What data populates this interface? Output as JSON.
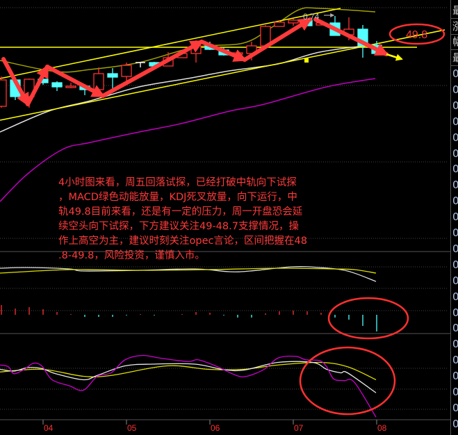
{
  "chart_data": [
    {
      "type": "candlestick",
      "panel": "main",
      "x_tick_labels": [
        "04",
        "05",
        "06",
        "07",
        "08"
      ],
      "x_tick_index": [
        3,
        9,
        15,
        21,
        27
      ],
      "candles_ohlc_note_order": [
        "open",
        "close",
        "high",
        "low"
      ],
      "candles": [
        [
          48.08,
          48.84,
          48.94,
          48.04
        ],
        [
          48.84,
          48.36,
          48.86,
          48.26
        ],
        [
          48.36,
          48.86,
          48.88,
          48.04
        ],
        [
          48.86,
          48.76,
          48.9,
          48.7
        ],
        [
          48.76,
          48.64,
          48.8,
          48.52
        ],
        [
          48.62,
          48.66,
          48.76,
          48.6
        ],
        [
          48.66,
          48.56,
          48.66,
          48.4
        ],
        [
          48.56,
          49.02,
          49.2,
          48.54
        ],
        [
          49.02,
          48.92,
          49.18,
          48.58
        ],
        [
          48.94,
          49.26,
          49.34,
          48.74
        ],
        [
          49.34,
          49.34,
          49.34,
          49.2
        ],
        [
          49.34,
          49.24,
          49.36,
          49.24
        ],
        [
          49.24,
          49.48,
          49.64,
          49.24
        ],
        [
          49.48,
          49.6,
          49.68,
          49.48
        ],
        [
          49.6,
          49.82,
          49.98,
          49.34
        ],
        [
          49.82,
          49.72,
          49.94,
          49.7
        ],
        [
          49.7,
          49.56,
          49.78,
          49.54
        ],
        [
          49.58,
          49.62,
          49.62,
          49.58
        ],
        [
          49.6,
          49.82,
          49.94,
          49.4
        ],
        [
          49.82,
          50.38,
          50.42,
          49.74
        ],
        [
          50.38,
          50.5,
          50.54,
          50.38
        ],
        [
          50.48,
          50.56,
          50.6,
          50.4
        ],
        [
          50.56,
          50.4,
          50.58,
          50.4
        ],
        [
          50.42,
          50.48,
          50.48,
          50.42
        ],
        [
          50.48,
          50.12,
          50.68,
          50.12
        ],
        [
          50.14,
          50.3,
          50.64,
          49.98
        ],
        [
          50.3,
          49.82,
          50.42,
          49.48
        ],
        [
          49.84,
          49.6,
          49.96,
          49.6
        ]
      ],
      "boll_upper": [
        [
          -0.1,
          49.4
        ],
        [
          3.9,
          49.08
        ],
        [
          6.4,
          49.14
        ],
        [
          9.9,
          49.34
        ],
        [
          13.9,
          49.78
        ],
        [
          17.4,
          49.9
        ],
        [
          19.4,
          50.34
        ],
        [
          21.4,
          50.86
        ],
        [
          22.9,
          50.9
        ],
        [
          26.9,
          50.8
        ]
      ],
      "boll_mid": [
        [
          -0.1,
          47.34
        ],
        [
          3.4,
          47.94
        ],
        [
          6.4,
          48.24
        ],
        [
          9.9,
          48.64
        ],
        [
          13.4,
          48.88
        ],
        [
          16.4,
          49.1
        ],
        [
          19.9,
          49.3
        ],
        [
          22.9,
          49.64
        ],
        [
          26.9,
          49.86
        ]
      ],
      "boll_lower": [
        [
          -0.1,
          45.34
        ],
        [
          1.9,
          46.14
        ],
        [
          4.4,
          46.84
        ],
        [
          6.4,
          47.04
        ],
        [
          9.9,
          47.34
        ],
        [
          12.9,
          47.58
        ],
        [
          16.4,
          47.94
        ],
        [
          18.9,
          48.14
        ],
        [
          23.4,
          48.64
        ],
        [
          26.9,
          48.88
        ]
      ],
      "trend_upper": [
        [
          -0.1,
          48.88
        ],
        [
          24.4,
          50.9
        ]
      ],
      "trend_lower": [
        [
          -0.1,
          47.68
        ],
        [
          31.9,
          50.28
        ]
      ],
      "horizontal_level": 49.8,
      "marker_label": "0.74",
      "callout_label": "49.8",
      "colors": {
        "up": "#ff3232",
        "down": "#54ffff",
        "boll_upper": "#a0a000",
        "boll_mid": "#e0e0e0",
        "boll_lower": "#c000c0",
        "trend": "#ffff00",
        "annotation": "#ff3030"
      }
    },
    {
      "type": "bar+line",
      "panel": "macd",
      "histogram": [
        0.14,
        0.09,
        0.11,
        0.08,
        0.04,
        0.01,
        -0.03,
        -0.03,
        -0.03,
        -0.01,
        0.01,
        -0.01,
        0,
        0.01,
        0.04,
        0.03,
        -0.01,
        -0.04,
        -0.04,
        0.02,
        0.05,
        0.06,
        0.05,
        0.03,
        -0.04,
        -0.07,
        -0.16,
        -0.24
      ],
      "dif": [
        [
          -0.1,
          0.67
        ],
        [
          1.9,
          0.68
        ],
        [
          4.9,
          0.66
        ],
        [
          5.9,
          0.63
        ],
        [
          9.9,
          0.64
        ],
        [
          13.9,
          0.66
        ],
        [
          16.4,
          0.62
        ],
        [
          17.9,
          0.63
        ],
        [
          20.9,
          0.69
        ],
        [
          22.9,
          0.68
        ],
        [
          24.9,
          0.63
        ],
        [
          26.95,
          0.48
        ]
      ],
      "dea": [
        [
          -0.1,
          0.6
        ],
        [
          4.9,
          0.65
        ],
        [
          9.9,
          0.64
        ],
        [
          14.9,
          0.65
        ],
        [
          19.9,
          0.67
        ],
        [
          23.9,
          0.66
        ],
        [
          25.4,
          0.65
        ],
        [
          26.95,
          0.6
        ]
      ]
    },
    {
      "type": "line",
      "panel": "kdj",
      "j": [
        [
          -0.1,
          63
        ],
        [
          0.5,
          61
        ],
        [
          0.9,
          53
        ],
        [
          1.65,
          58
        ],
        [
          2.3,
          65
        ],
        [
          2.9,
          62
        ],
        [
          3.65,
          46
        ],
        [
          4.9,
          39
        ],
        [
          5.9,
          34
        ],
        [
          6.9,
          50
        ],
        [
          7.9,
          54
        ],
        [
          8.9,
          69
        ],
        [
          10.15,
          74
        ],
        [
          11.4,
          71
        ],
        [
          13.4,
          67
        ],
        [
          14.15,
          69
        ],
        [
          15.4,
          62
        ],
        [
          16.9,
          51
        ],
        [
          17.65,
          50
        ],
        [
          18.9,
          58
        ],
        [
          19.9,
          71
        ],
        [
          21.15,
          73
        ],
        [
          21.9,
          69
        ],
        [
          22.9,
          68
        ],
        [
          23.4,
          61
        ],
        [
          23.9,
          47
        ],
        [
          24.65,
          45
        ],
        [
          25.4,
          43
        ],
        [
          26.95,
          3
        ]
      ],
      "k": [
        [
          -0.1,
          58
        ],
        [
          0.9,
          56
        ],
        [
          1.9,
          60
        ],
        [
          2.9,
          59
        ],
        [
          3.9,
          53
        ],
        [
          5.9,
          46
        ],
        [
          6.9,
          51
        ],
        [
          8.9,
          62
        ],
        [
          10.9,
          64
        ],
        [
          13.9,
          64
        ],
        [
          15.9,
          58
        ],
        [
          17.4,
          57
        ],
        [
          19.9,
          66
        ],
        [
          22.4,
          66
        ],
        [
          23.4,
          58
        ],
        [
          24.4,
          54
        ],
        [
          24.9,
          54
        ],
        [
          26.95,
          31
        ]
      ],
      "d": [
        [
          -0.1,
          55
        ],
        [
          2.9,
          58
        ],
        [
          5.9,
          50
        ],
        [
          7.9,
          51
        ],
        [
          11.9,
          62
        ],
        [
          14.9,
          58
        ],
        [
          17.4,
          58
        ],
        [
          19.9,
          63
        ],
        [
          22.9,
          66
        ],
        [
          24.9,
          61
        ],
        [
          26.95,
          46
        ]
      ]
    }
  ],
  "note": {
    "lines": [
      "4小时图来看，周五回落试探，已经打破中轨向下试探",
      "，MACD绿色动能放量，KDJ死叉放量，向下运行，中",
      "轨49.8目前来看，还是有一定的压力，周一开盘恐会延",
      "续空头向下试探，下方建议关注49-48.7支撑情况，操",
      "作上高空为主，建议时刻关注opec言论，区间把握在48",
      ".8-49.8，风险投资，谨慎入市。"
    ]
  },
  "sidebar": {
    "labels": [
      "最",
      "涨",
      "幅",
      "最"
    ],
    "zero": "0"
  }
}
